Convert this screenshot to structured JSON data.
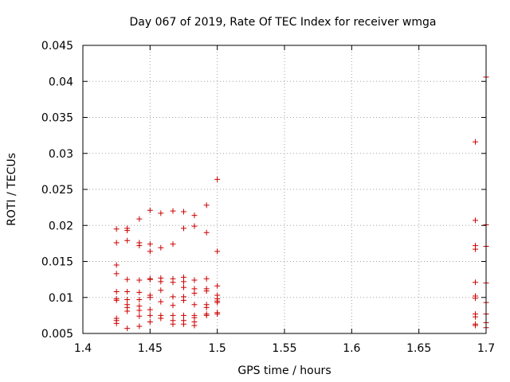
{
  "chart_data": {
    "type": "scatter",
    "title": "Day 067 of 2019, Rate Of TEC Index for receiver wmga",
    "xlabel": "GPS time / hours",
    "ylabel": "ROTI / TECUs",
    "xlim": [
      1.4,
      1.7
    ],
    "ylim": [
      0.005,
      0.045
    ],
    "xticks": [
      "1.4",
      "1.45",
      "1.5",
      "1.55",
      "1.6",
      "1.65",
      "1.7"
    ],
    "yticks": [
      "0.005",
      "0.01",
      "0.015",
      "0.02",
      "0.025",
      "0.03",
      "0.035",
      "0.04",
      "0.045"
    ],
    "grid": true,
    "marker": "+",
    "marker_color": "#cc0000",
    "points": [
      [
        1.425,
        0.0195
      ],
      [
        1.425,
        0.0176
      ],
      [
        1.425,
        0.0145
      ],
      [
        1.425,
        0.0133
      ],
      [
        1.425,
        0.0108
      ],
      [
        1.425,
        0.0098
      ],
      [
        1.425,
        0.0096
      ],
      [
        1.425,
        0.0071
      ],
      [
        1.425,
        0.0068
      ],
      [
        1.425,
        0.0064
      ],
      [
        1.433,
        0.0196
      ],
      [
        1.433,
        0.0193
      ],
      [
        1.433,
        0.0179
      ],
      [
        1.433,
        0.0125
      ],
      [
        1.433,
        0.0108
      ],
      [
        1.433,
        0.0097
      ],
      [
        1.433,
        0.009
      ],
      [
        1.433,
        0.0086
      ],
      [
        1.433,
        0.0081
      ],
      [
        1.433,
        0.0057
      ],
      [
        1.442,
        0.0209
      ],
      [
        1.442,
        0.0176
      ],
      [
        1.442,
        0.0172
      ],
      [
        1.442,
        0.0124
      ],
      [
        1.442,
        0.0107
      ],
      [
        1.442,
        0.0097
      ],
      [
        1.442,
        0.0088
      ],
      [
        1.442,
        0.0082
      ],
      [
        1.442,
        0.0074
      ],
      [
        1.442,
        0.006
      ],
      [
        1.45,
        0.0221
      ],
      [
        1.45,
        0.0174
      ],
      [
        1.45,
        0.0164
      ],
      [
        1.45,
        0.0126
      ],
      [
        1.45,
        0.0125
      ],
      [
        1.45,
        0.0103
      ],
      [
        1.45,
        0.01
      ],
      [
        1.45,
        0.0083
      ],
      [
        1.45,
        0.0075
      ],
      [
        1.45,
        0.0066
      ],
      [
        1.458,
        0.0217
      ],
      [
        1.458,
        0.0169
      ],
      [
        1.458,
        0.0127
      ],
      [
        1.458,
        0.0122
      ],
      [
        1.458,
        0.011
      ],
      [
        1.458,
        0.0094
      ],
      [
        1.458,
        0.0075
      ],
      [
        1.458,
        0.0071
      ],
      [
        1.467,
        0.022
      ],
      [
        1.467,
        0.0174
      ],
      [
        1.467,
        0.0126
      ],
      [
        1.467,
        0.0121
      ],
      [
        1.467,
        0.0101
      ],
      [
        1.467,
        0.0089
      ],
      [
        1.467,
        0.0075
      ],
      [
        1.467,
        0.0068
      ],
      [
        1.467,
        0.0063
      ],
      [
        1.475,
        0.0219
      ],
      [
        1.475,
        0.0196
      ],
      [
        1.475,
        0.0128
      ],
      [
        1.475,
        0.0122
      ],
      [
        1.475,
        0.0114
      ],
      [
        1.475,
        0.0101
      ],
      [
        1.475,
        0.0096
      ],
      [
        1.475,
        0.0075
      ],
      [
        1.475,
        0.0068
      ],
      [
        1.475,
        0.0063
      ],
      [
        1.483,
        0.0214
      ],
      [
        1.483,
        0.0199
      ],
      [
        1.483,
        0.0124
      ],
      [
        1.483,
        0.0112
      ],
      [
        1.483,
        0.0106
      ],
      [
        1.483,
        0.009
      ],
      [
        1.483,
        0.0075
      ],
      [
        1.483,
        0.0072
      ],
      [
        1.483,
        0.0066
      ],
      [
        1.483,
        0.0061
      ],
      [
        1.492,
        0.0228
      ],
      [
        1.492,
        0.019
      ],
      [
        1.492,
        0.0126
      ],
      [
        1.492,
        0.0112
      ],
      [
        1.492,
        0.0109
      ],
      [
        1.492,
        0.009
      ],
      [
        1.492,
        0.0086
      ],
      [
        1.492,
        0.0077
      ],
      [
        1.492,
        0.0075
      ],
      [
        1.5,
        0.0264
      ],
      [
        1.5,
        0.0164
      ],
      [
        1.5,
        0.0116
      ],
      [
        1.5,
        0.0103
      ],
      [
        1.5,
        0.0098
      ],
      [
        1.5,
        0.0095
      ],
      [
        1.5,
        0.0093
      ],
      [
        1.5,
        0.0079
      ],
      [
        1.5,
        0.0077
      ],
      [
        1.692,
        0.0316
      ],
      [
        1.692,
        0.0207
      ],
      [
        1.692,
        0.0172
      ],
      [
        1.692,
        0.0167
      ],
      [
        1.692,
        0.0121
      ],
      [
        1.692,
        0.0102
      ],
      [
        1.692,
        0.0099
      ],
      [
        1.692,
        0.0077
      ],
      [
        1.692,
        0.0073
      ],
      [
        1.692,
        0.0063
      ],
      [
        1.692,
        0.0061
      ],
      [
        1.7,
        0.0406
      ],
      [
        1.7,
        0.0201
      ],
      [
        1.7,
        0.0171
      ],
      [
        1.7,
        0.012
      ],
      [
        1.7,
        0.0093
      ],
      [
        1.7,
        0.0077
      ],
      [
        1.7,
        0.0065
      ],
      [
        1.7,
        0.0058
      ]
    ]
  }
}
